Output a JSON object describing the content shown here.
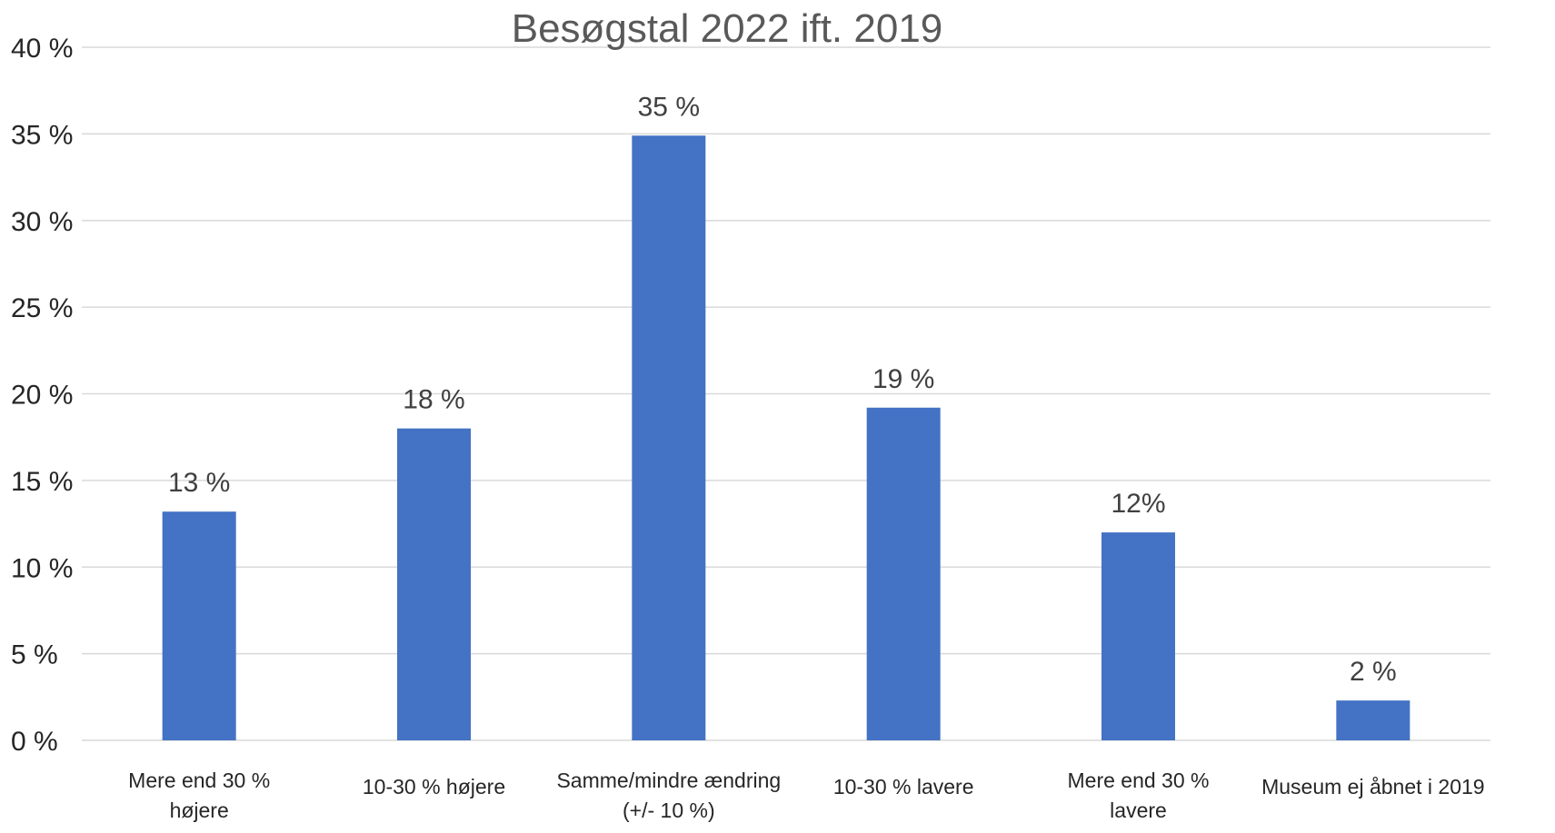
{
  "chart_data": {
    "type": "bar",
    "title": "Besøgstal 2022 ift. 2019",
    "xlabel": "",
    "ylabel": "",
    "categories": [
      [
        "Mere end 30 %",
        "højere"
      ],
      [
        "10-30 % højere"
      ],
      [
        "Samme/mindre ændring",
        "(+/- 10 %)"
      ],
      [
        "10-30 % lavere"
      ],
      [
        "Mere end 30 %",
        "lavere"
      ],
      [
        "Museum ej åbnet i 2019"
      ]
    ],
    "values": [
      13.2,
      18.0,
      34.9,
      19.2,
      12.0,
      2.3
    ],
    "data_labels": [
      "13 %",
      "18 %",
      "35 %",
      "19 %",
      "12%",
      "2 %"
    ],
    "ylim": [
      0,
      40
    ],
    "yticks": [
      0,
      5,
      10,
      15,
      20,
      25,
      30,
      35,
      40
    ],
    "ytick_labels": [
      "0 %",
      "5 %",
      "10 %",
      "15 %",
      "20 %",
      "25 %",
      "30 %",
      "35 %",
      "40 %"
    ],
    "grid": true,
    "legend": "none",
    "bar_color": "#4472c4"
  }
}
